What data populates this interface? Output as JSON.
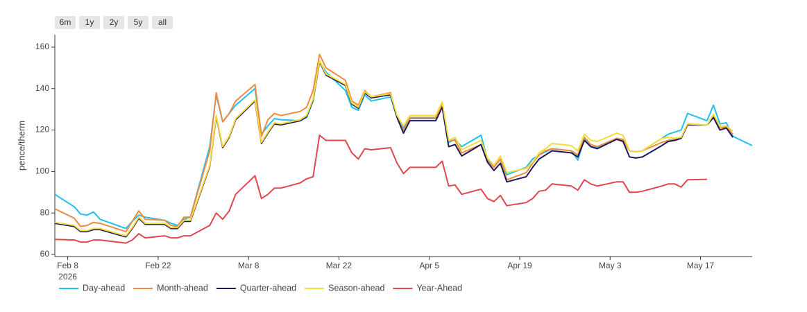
{
  "range_buttons": [
    "6m",
    "1y",
    "2y",
    "5y",
    "all"
  ],
  "chart_data": {
    "type": "line",
    "y_axis_label": "pence/therm",
    "x": [
      "2026-02-06",
      "2026-02-09",
      "2026-02-10",
      "2026-02-11",
      "2026-02-12",
      "2026-02-13",
      "2026-02-17",
      "2026-02-18",
      "2026-02-19",
      "2026-02-20",
      "2026-02-23",
      "2026-02-24",
      "2026-02-25",
      "2026-02-26",
      "2026-02-27",
      "2026-03-02",
      "2026-03-03",
      "2026-03-04",
      "2026-03-05",
      "2026-03-06",
      "2026-03-09",
      "2026-03-10",
      "2026-03-11",
      "2026-03-12",
      "2026-03-13",
      "2026-03-16",
      "2026-03-17",
      "2026-03-18",
      "2026-03-19",
      "2026-03-20",
      "2026-03-23",
      "2026-03-24",
      "2026-03-25",
      "2026-03-26",
      "2026-03-27",
      "2026-03-30",
      "2026-03-31",
      "2026-04-01",
      "2026-04-02",
      "2026-04-06",
      "2026-04-07",
      "2026-04-08",
      "2026-04-09",
      "2026-04-10",
      "2026-04-13",
      "2026-04-14",
      "2026-04-15",
      "2026-04-16",
      "2026-04-17",
      "2026-04-20",
      "2026-04-21",
      "2026-04-22",
      "2026-04-23",
      "2026-04-24",
      "2026-04-27",
      "2026-04-28",
      "2026-04-29",
      "2026-04-30",
      "2026-05-01",
      "2026-05-04",
      "2026-05-05",
      "2026-05-06",
      "2026-05-07",
      "2026-05-08",
      "2026-05-11",
      "2026-05-12",
      "2026-05-13",
      "2026-05-14",
      "2026-05-15",
      "2026-05-18",
      "2026-05-19",
      "2026-05-20",
      "2026-05-21",
      "2026-05-22",
      "2026-05-25"
    ],
    "series": [
      {
        "name": "Day-ahead",
        "color": "#1fbff0",
        "values": [
          89,
          83,
          79.5,
          79,
          80.5,
          77,
          72.5,
          76,
          79,
          78,
          76.5,
          75,
          74,
          77,
          78,
          112,
          137,
          124,
          128,
          132,
          140,
          118,
          122,
          125.5,
          125,
          124.5,
          126,
          134,
          153,
          148,
          139,
          131,
          129.5,
          137,
          134,
          136,
          126,
          121,
          125.5,
          125.5,
          133,
          114,
          115.5,
          112,
          117.5,
          106,
          102,
          106,
          98.5,
          102,
          106,
          108,
          109.5,
          111,
          110,
          105.5,
          116,
          112,
          111.5,
          116,
          115,
          110,
          109.5,
          110,
          116,
          118,
          119,
          120,
          128,
          124.5,
          132,
          123,
          123.5,
          117,
          112.5
        ]
      },
      {
        "name": "Month-ahead",
        "color": "#f08a3c",
        "values": [
          82,
          77.5,
          73.5,
          74,
          75.5,
          75,
          71,
          76,
          81,
          77,
          76.5,
          74,
          73.5,
          78,
          78,
          110,
          138,
          124,
          128,
          134,
          142,
          117,
          125,
          128,
          127,
          129,
          131,
          139,
          156.5,
          150,
          144,
          134,
          132,
          139,
          136,
          138,
          126,
          119.5,
          126,
          126,
          132,
          115,
          115,
          109,
          113,
          105,
          102,
          106,
          96,
          99.5,
          104,
          108,
          110,
          111,
          110,
          108,
          116.5,
          113,
          112,
          116,
          115.5,
          110,
          109.5,
          110,
          114,
          115,
          115.5,
          116,
          122.5,
          122.5,
          126.5,
          121,
          121.5,
          118,
          null
        ]
      },
      {
        "name": "Quarter-ahead",
        "color": "#1f1a5c",
        "values": [
          75,
          73.5,
          71,
          71,
          72,
          72,
          68.5,
          72.5,
          77.5,
          74.5,
          74.5,
          72.5,
          72.5,
          76,
          76,
          102.5,
          126.5,
          111.5,
          116.5,
          125,
          134,
          113.5,
          118.5,
          123,
          122.5,
          124.5,
          126.5,
          134.5,
          153,
          146.5,
          141.5,
          132.5,
          130.5,
          138,
          135.5,
          137,
          126,
          118.5,
          124.5,
          124.5,
          131,
          112,
          113,
          107.5,
          113,
          104.5,
          100.5,
          104,
          95,
          97.5,
          102,
          106,
          108,
          110,
          109,
          107,
          115,
          112,
          111,
          115.5,
          114.5,
          107,
          106.5,
          107,
          112.5,
          114.5,
          115,
          116,
          122.5,
          122.5,
          126,
          120,
          121,
          116.5,
          null
        ]
      },
      {
        "name": "Season-ahead",
        "color": "#f5dc3a",
        "values": [
          75.5,
          74,
          71.5,
          71.5,
          72.5,
          72.5,
          69,
          73,
          78,
          75,
          75,
          73,
          73,
          76.5,
          76.5,
          103,
          127,
          112,
          117,
          125.5,
          134.5,
          114,
          119,
          123.5,
          123,
          125,
          127,
          135,
          153.5,
          147,
          142,
          133,
          131,
          138.5,
          136,
          137.5,
          127,
          122,
          127,
          127,
          133.5,
          115,
          116.5,
          110.5,
          115,
          106.5,
          103,
          107.5,
          99.5,
          101.5,
          104.5,
          109,
          111,
          113.5,
          112.5,
          110,
          118,
          115,
          114.5,
          118.5,
          117.5,
          110,
          109.5,
          110,
          116,
          116.5,
          116,
          116.5,
          123,
          122.5,
          127.5,
          122,
          122,
          119.5,
          null
        ]
      },
      {
        "name": "Year-Ahead",
        "color": "#e0474c",
        "values": [
          67.3,
          67,
          66,
          66,
          67,
          67,
          65.5,
          67,
          70,
          68,
          69,
          68,
          68,
          69,
          69,
          74,
          80,
          77,
          81,
          89,
          98,
          87,
          89,
          92,
          92,
          94.5,
          96.5,
          97.5,
          117.5,
          115,
          115,
          109,
          106,
          111,
          110.5,
          111.5,
          104,
          99,
          102,
          102,
          105,
          93,
          93.5,
          89,
          91.5,
          87,
          85.5,
          88.5,
          83.5,
          85,
          87,
          90.5,
          91,
          94,
          93,
          91,
          96,
          94,
          93,
          95,
          95,
          90,
          90,
          90.5,
          93,
          94,
          94,
          92.5,
          96,
          96.2,
          null,
          null,
          null,
          null,
          null
        ]
      }
    ],
    "xlim": [
      "2026-02-06",
      "2026-05-25"
    ],
    "xticks": [
      {
        "value": "2026-02-08",
        "label": "Feb 8"
      },
      {
        "value": "2026-02-22",
        "label": "Feb 22"
      },
      {
        "value": "2026-03-08",
        "label": "Mar 8"
      },
      {
        "value": "2026-03-22",
        "label": "Mar 22"
      },
      {
        "value": "2026-04-05",
        "label": "Apr 5"
      },
      {
        "value": "2026-04-19",
        "label": "Apr 19"
      },
      {
        "value": "2026-05-03",
        "label": "May 3"
      },
      {
        "value": "2026-05-17",
        "label": "May 17"
      }
    ],
    "x_year_label": "2026",
    "ylim": [
      59,
      166
    ],
    "yticks": [
      60,
      80,
      100,
      120,
      140,
      160
    ],
    "grid": false,
    "legend": "bottom-left"
  }
}
